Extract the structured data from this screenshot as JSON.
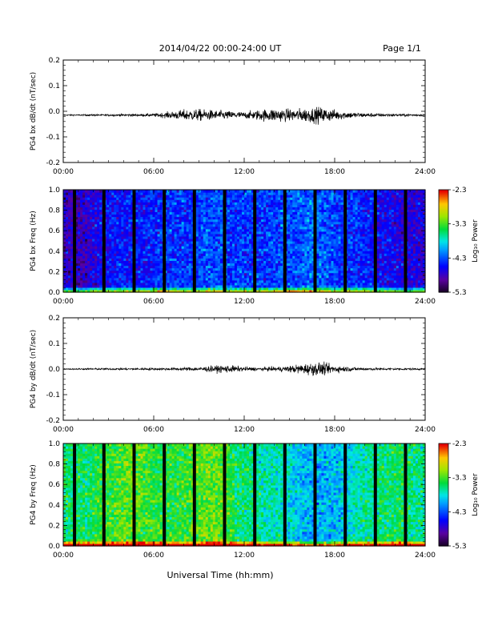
{
  "header": {
    "date_range": "2014/04/22  00:00-24:00 UT",
    "page_label": "Page 1/1"
  },
  "x_axis": {
    "title": "Universal Time (hh:mm)",
    "ticks": [
      "00:00",
      "06:00",
      "12:00",
      "18:00",
      "24:00"
    ]
  },
  "colorbar": {
    "title": "Log₁₀ Power",
    "ticks": [
      "-2.3",
      "-3.3",
      "-4.3",
      "-5.3"
    ],
    "range": [
      -5.3,
      -2.3
    ]
  },
  "panels": [
    {
      "kind": "waveform",
      "ylabel": "PG4 bx dB/dt (nT/sec)",
      "yticks": [
        "0.2",
        "0.1",
        "0.0",
        "-0.1",
        "-0.2"
      ]
    },
    {
      "kind": "spectrogram",
      "ylabel": "PG4 bx Freq (Hz)",
      "yticks": [
        "1.0",
        "0.8",
        "0.6",
        "0.4",
        "0.2",
        "0.0"
      ]
    },
    {
      "kind": "waveform",
      "ylabel": "PG4 by dB/dt (nT/sec)",
      "yticks": [
        "0.2",
        "0.1",
        "0.0",
        "-0.1",
        "-0.2"
      ]
    },
    {
      "kind": "spectrogram",
      "ylabel": "PG4 by Freq (Hz)",
      "yticks": [
        "1.0",
        "0.8",
        "0.6",
        "0.4",
        "0.2",
        "0.0"
      ]
    }
  ],
  "chart_data": [
    {
      "type": "line",
      "panel": 1,
      "xlim": [
        0,
        24
      ],
      "ylim": [
        -0.2,
        0.2
      ],
      "ylabel": "PG4 bx dB/dt (nT/sec)",
      "x": [
        0,
        2,
        4,
        6,
        7,
        8,
        9,
        10,
        11,
        12,
        13,
        14,
        15,
        16,
        17,
        18,
        19,
        20,
        22,
        24
      ],
      "amplitude": [
        0.002,
        0.003,
        0.004,
        0.006,
        0.012,
        0.02,
        0.022,
        0.018,
        0.015,
        0.012,
        0.02,
        0.026,
        0.022,
        0.026,
        0.03,
        0.02,
        0.012,
        0.008,
        0.005,
        0.004
      ],
      "baseline": -0.015
    },
    {
      "type": "heatmap",
      "panel": 2,
      "xlim": [
        0,
        24
      ],
      "ylim": [
        0,
        1
      ],
      "ylabel": "PG4 bx Freq (Hz)",
      "zlim": [
        -5.3,
        -2.3
      ],
      "mean_log_power_by_hour": [
        -4.8,
        -4.8,
        -4.6,
        -4.5,
        -4.5,
        -4.5,
        -4.4,
        -4.4,
        -4.4,
        -4.3,
        -4.3,
        -4.4,
        -4.4,
        -4.4,
        -4.3,
        -4.3,
        -4.2,
        -4.3,
        -4.4,
        -4.4,
        -4.5,
        -4.6,
        -4.7,
        -4.7
      ],
      "data_gaps_hours": [
        0.75,
        2.7,
        4.7,
        6.7,
        8.7,
        10.7,
        12.7,
        14.7,
        16.7,
        18.7,
        20.7,
        22.7
      ]
    },
    {
      "type": "line",
      "panel": 3,
      "xlim": [
        0,
        24
      ],
      "ylim": [
        -0.2,
        0.2
      ],
      "ylabel": "PG4 by dB/dt (nT/sec)",
      "x": [
        0,
        2,
        4,
        6,
        7,
        8,
        9,
        10,
        11,
        12,
        13,
        14,
        15,
        16,
        17,
        18,
        19,
        20,
        22,
        24
      ],
      "amplitude": [
        0.002,
        0.003,
        0.004,
        0.004,
        0.005,
        0.006,
        0.008,
        0.012,
        0.014,
        0.008,
        0.006,
        0.008,
        0.012,
        0.02,
        0.025,
        0.014,
        0.008,
        0.005,
        0.004,
        0.003
      ],
      "baseline": 0.0
    },
    {
      "type": "heatmap",
      "panel": 4,
      "xlim": [
        0,
        24
      ],
      "ylim": [
        0,
        1
      ],
      "ylabel": "PG4 by Freq (Hz)",
      "zlim": [
        -5.3,
        -2.3
      ],
      "mean_log_power_by_hour": [
        -3.5,
        -3.5,
        -3.4,
        -3.3,
        -3.2,
        -3.3,
        -3.4,
        -3.4,
        -3.3,
        -3.2,
        -3.2,
        -3.5,
        -3.6,
        -3.7,
        -3.7,
        -3.9,
        -4.0,
        -4.0,
        -3.9,
        -3.7,
        -3.6,
        -3.5,
        -3.5,
        -3.6
      ],
      "data_gaps_hours": [
        0.75,
        2.7,
        4.7,
        6.7,
        8.7,
        10.7,
        12.7,
        14.7,
        16.7,
        18.7,
        20.7,
        22.7
      ]
    }
  ]
}
